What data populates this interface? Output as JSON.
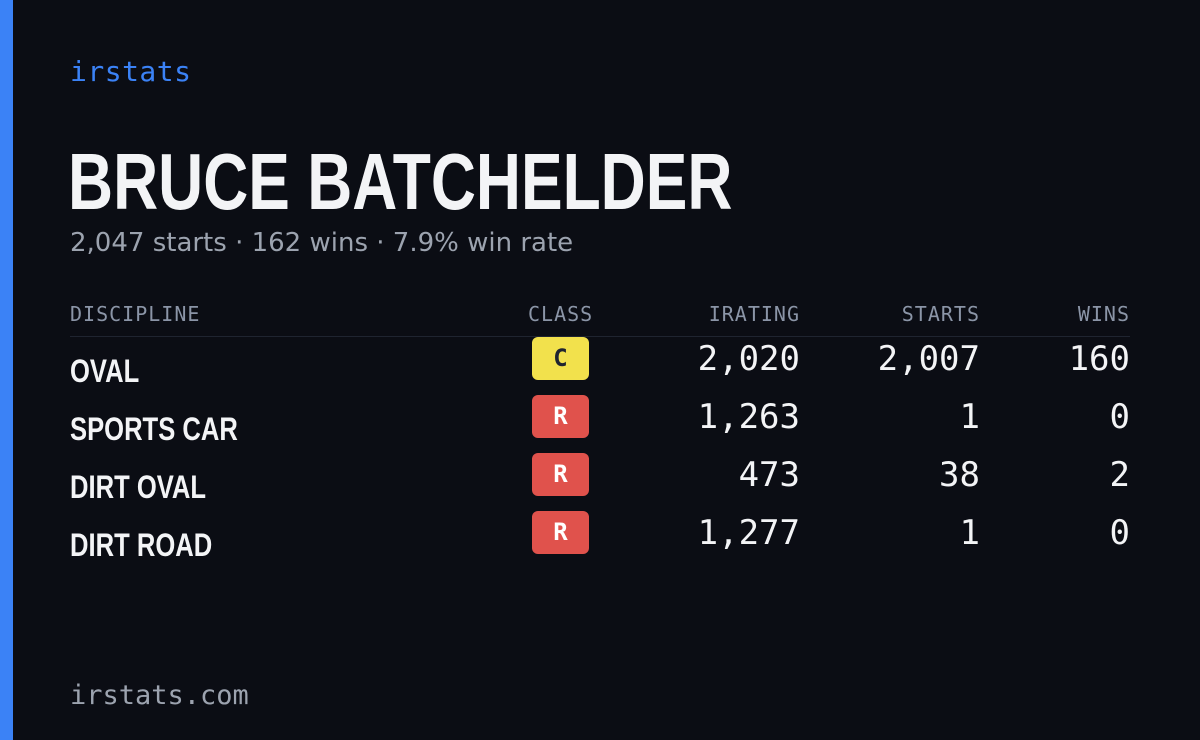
{
  "brand": "irstats",
  "driver": {
    "name": "BRUCE BATCHELDER",
    "summary": "2,047 starts · 162 wins · 7.9% win rate"
  },
  "table": {
    "headers": {
      "discipline": "DISCIPLINE",
      "class": "CLASS",
      "irating": "IRATING",
      "starts": "STARTS",
      "wins": "WINS"
    },
    "rows": [
      {
        "discipline": "OVAL",
        "class": "C",
        "class_color": "#f2e14c",
        "class_text_color": "#1f2430",
        "irating": "2,020",
        "starts": "2,007",
        "wins": "160"
      },
      {
        "discipline": "SPORTS CAR",
        "class": "R",
        "class_color": "#e0524c",
        "class_text_color": "#ffffff",
        "irating": "1,263",
        "starts": "1",
        "wins": "0"
      },
      {
        "discipline": "DIRT OVAL",
        "class": "R",
        "class_color": "#e0524c",
        "class_text_color": "#ffffff",
        "irating": "473",
        "starts": "38",
        "wins": "2"
      },
      {
        "discipline": "DIRT ROAD",
        "class": "R",
        "class_color": "#e0524c",
        "class_text_color": "#ffffff",
        "irating": "1,277",
        "starts": "1",
        "wins": "0"
      }
    ]
  },
  "footer": "irstats.com",
  "colors": {
    "background": "#0b0d14",
    "accent": "#3b82f6"
  }
}
